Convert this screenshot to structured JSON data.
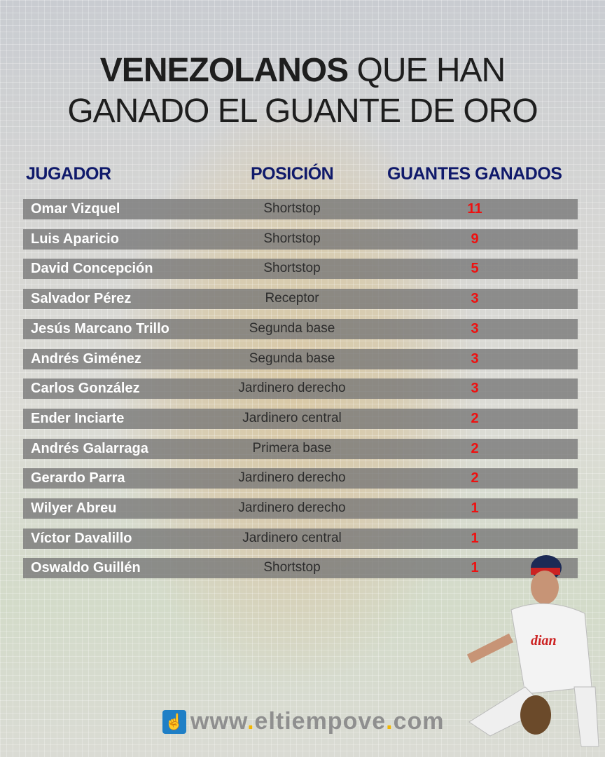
{
  "title": {
    "bold": "VENEZOLANOS",
    "rest_line1": "QUE HAN",
    "line2": "GANADO EL GUANTE DE ORO"
  },
  "headers": {
    "player": "JUGADOR",
    "position": "POSICIÓN",
    "gloves": "GUANTES GANADOS"
  },
  "rows": [
    {
      "name": "Omar Vizquel",
      "position": "Shortstop",
      "gloves": "11"
    },
    {
      "name": "Luis Aparicio",
      "position": "Shortstop",
      "gloves": "9"
    },
    {
      "name": "David Concepción",
      "position": "Shortstop",
      "gloves": "5"
    },
    {
      "name": "Salvador Pérez",
      "position": "Receptor",
      "gloves": "3"
    },
    {
      "name": "Jesús Marcano Trillo",
      "position": "Segunda base",
      "gloves": "3"
    },
    {
      "name": "Andrés Giménez",
      "position": "Segunda base",
      "gloves": "3"
    },
    {
      "name": "Carlos González",
      "position": "Jardinero derecho",
      "gloves": "3"
    },
    {
      "name": "Ender Inciarte",
      "position": "Jardinero central",
      "gloves": "2"
    },
    {
      "name": "Andrés Galarraga",
      "position": "Primera base",
      "gloves": "2"
    },
    {
      "name": "Gerardo Parra",
      "position": "Jardinero derecho",
      "gloves": "2"
    },
    {
      "name": "Wilyer Abreu",
      "position": "Jardinero derecho",
      "gloves": "1"
    },
    {
      "name": "Víctor Davalillo",
      "position": "Jardinero central",
      "gloves": "1"
    },
    {
      "name": "Oswaldo Guillén",
      "position": "Shortstop",
      "gloves": "1"
    }
  ],
  "footer": {
    "url_a": "www",
    "url_b": "eltiempove",
    "url_c": "com",
    "dot": "."
  },
  "colors": {
    "header": "#101a6b",
    "count": "#ee1111",
    "dot": "#f2b600",
    "logo": "#1f7fc6"
  }
}
